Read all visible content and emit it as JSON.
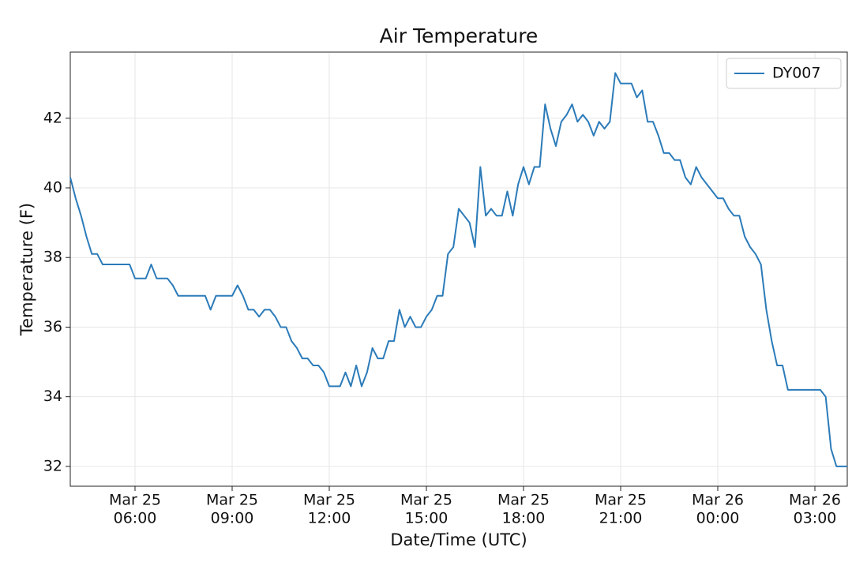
{
  "chart_data": {
    "type": "line",
    "title": "Air Temperature",
    "xlabel": "Date/Time (UTC)",
    "ylabel": "Temperature (F)",
    "x": [
      "Mar 25 04:00",
      "Mar 25 04:10",
      "Mar 25 04:20",
      "Mar 25 04:30",
      "Mar 25 04:40",
      "Mar 25 04:50",
      "Mar 25 05:00",
      "Mar 25 05:10",
      "Mar 25 05:20",
      "Mar 25 05:30",
      "Mar 25 05:40",
      "Mar 25 05:50",
      "Mar 25 06:00",
      "Mar 25 06:10",
      "Mar 25 06:20",
      "Mar 25 06:30",
      "Mar 25 06:40",
      "Mar 25 06:50",
      "Mar 25 07:00",
      "Mar 25 07:10",
      "Mar 25 07:20",
      "Mar 25 07:30",
      "Mar 25 07:40",
      "Mar 25 07:50",
      "Mar 25 08:00",
      "Mar 25 08:10",
      "Mar 25 08:20",
      "Mar 25 08:30",
      "Mar 25 08:40",
      "Mar 25 08:50",
      "Mar 25 09:00",
      "Mar 25 09:10",
      "Mar 25 09:20",
      "Mar 25 09:30",
      "Mar 25 09:40",
      "Mar 25 09:50",
      "Mar 25 10:00",
      "Mar 25 10:10",
      "Mar 25 10:20",
      "Mar 25 10:30",
      "Mar 25 10:40",
      "Mar 25 10:50",
      "Mar 25 11:00",
      "Mar 25 11:10",
      "Mar 25 11:20",
      "Mar 25 11:30",
      "Mar 25 11:40",
      "Mar 25 11:50",
      "Mar 25 12:00",
      "Mar 25 12:10",
      "Mar 25 12:20",
      "Mar 25 12:30",
      "Mar 25 12:40",
      "Mar 25 12:50",
      "Mar 25 13:00",
      "Mar 25 13:10",
      "Mar 25 13:20",
      "Mar 25 13:30",
      "Mar 25 13:40",
      "Mar 25 13:50",
      "Mar 25 14:00",
      "Mar 25 14:10",
      "Mar 25 14:20",
      "Mar 25 14:30",
      "Mar 25 14:40",
      "Mar 25 14:50",
      "Mar 25 15:00",
      "Mar 25 15:10",
      "Mar 25 15:20",
      "Mar 25 15:30",
      "Mar 25 15:40",
      "Mar 25 15:50",
      "Mar 25 16:00",
      "Mar 25 16:10",
      "Mar 25 16:20",
      "Mar 25 16:30",
      "Mar 25 16:40",
      "Mar 25 16:50",
      "Mar 25 17:00",
      "Mar 25 17:10",
      "Mar 25 17:20",
      "Mar 25 17:30",
      "Mar 25 17:40",
      "Mar 25 17:50",
      "Mar 25 18:00",
      "Mar 25 18:10",
      "Mar 25 18:20",
      "Mar 25 18:30",
      "Mar 25 18:40",
      "Mar 25 18:50",
      "Mar 25 19:00",
      "Mar 25 19:10",
      "Mar 25 19:20",
      "Mar 25 19:30",
      "Mar 25 19:40",
      "Mar 25 19:50",
      "Mar 25 20:00",
      "Mar 25 20:10",
      "Mar 25 20:20",
      "Mar 25 20:30",
      "Mar 25 20:40",
      "Mar 25 20:50",
      "Mar 25 21:00",
      "Mar 25 21:10",
      "Mar 25 21:20",
      "Mar 25 21:30",
      "Mar 25 21:40",
      "Mar 25 21:50",
      "Mar 25 22:00",
      "Mar 25 22:10",
      "Mar 25 22:20",
      "Mar 25 22:30",
      "Mar 25 22:40",
      "Mar 25 22:50",
      "Mar 25 23:00",
      "Mar 25 23:10",
      "Mar 25 23:20",
      "Mar 25 23:30",
      "Mar 25 23:40",
      "Mar 25 23:50",
      "Mar 26 00:00",
      "Mar 26 00:10",
      "Mar 26 00:20",
      "Mar 26 00:30",
      "Mar 26 00:40",
      "Mar 26 00:50",
      "Mar 26 01:00",
      "Mar 26 01:10",
      "Mar 26 01:20",
      "Mar 26 01:30",
      "Mar 26 01:40",
      "Mar 26 01:50",
      "Mar 26 02:00",
      "Mar 26 02:10",
      "Mar 26 02:20",
      "Mar 26 02:30",
      "Mar 26 02:40",
      "Mar 26 02:50",
      "Mar 26 03:00",
      "Mar 26 03:10",
      "Mar 26 03:20",
      "Mar 26 03:30",
      "Mar 26 03:40",
      "Mar 26 03:50",
      "Mar 26 04:00"
    ],
    "series": [
      {
        "name": "DY007",
        "color": "#2b7bb9",
        "values": [
          40.3,
          39.7,
          39.2,
          38.6,
          38.1,
          38.1,
          37.8,
          37.8,
          37.8,
          37.8,
          37.8,
          37.8,
          37.4,
          37.4,
          37.4,
          37.8,
          37.4,
          37.4,
          37.4,
          37.2,
          36.9,
          36.9,
          36.9,
          36.9,
          36.9,
          36.9,
          36.5,
          36.9,
          36.9,
          36.9,
          36.9,
          37.2,
          36.9,
          36.5,
          36.5,
          36.3,
          36.5,
          36.5,
          36.3,
          36.0,
          36.0,
          35.6,
          35.4,
          35.1,
          35.1,
          34.9,
          34.9,
          34.7,
          34.3,
          34.3,
          34.3,
          34.7,
          34.3,
          34.9,
          34.3,
          34.7,
          35.4,
          35.1,
          35.1,
          35.6,
          35.6,
          36.5,
          36.0,
          36.3,
          36.0,
          36.0,
          36.3,
          36.5,
          36.9,
          36.9,
          38.1,
          38.3,
          39.4,
          39.2,
          39.0,
          38.3,
          40.6,
          39.2,
          39.4,
          39.2,
          39.2,
          39.9,
          39.2,
          40.1,
          40.6,
          40.1,
          40.6,
          40.6,
          42.4,
          41.7,
          41.2,
          41.9,
          42.1,
          42.4,
          41.9,
          42.1,
          41.9,
          41.5,
          41.9,
          41.7,
          41.9,
          43.3,
          43.0,
          43.0,
          43.0,
          42.6,
          42.8,
          41.9,
          41.9,
          41.5,
          41.0,
          41.0,
          40.8,
          40.8,
          40.3,
          40.1,
          40.6,
          40.3,
          40.1,
          39.9,
          39.7,
          39.7,
          39.4,
          39.2,
          39.2,
          38.6,
          38.3,
          38.1,
          37.8,
          36.5,
          35.6,
          34.9,
          34.9,
          34.2,
          34.2,
          34.2,
          34.2,
          34.2,
          34.2,
          34.2,
          34.0,
          32.5,
          32.0,
          32.0,
          32.0
        ]
      }
    ],
    "xlim": [
      "Mar 25 04:00",
      "Mar 26 04:00"
    ],
    "xticks": [
      {
        "value": "Mar 25 06:00",
        "label": [
          "Mar 25",
          "06:00"
        ]
      },
      {
        "value": "Mar 25 09:00",
        "label": [
          "Mar 25",
          "09:00"
        ]
      },
      {
        "value": "Mar 25 12:00",
        "label": [
          "Mar 25",
          "12:00"
        ]
      },
      {
        "value": "Mar 25 15:00",
        "label": [
          "Mar 25",
          "15:00"
        ]
      },
      {
        "value": "Mar 25 18:00",
        "label": [
          "Mar 25",
          "18:00"
        ]
      },
      {
        "value": "Mar 25 21:00",
        "label": [
          "Mar 25",
          "21:00"
        ]
      },
      {
        "value": "Mar 26 00:00",
        "label": [
          "Mar 26",
          "00:00"
        ]
      },
      {
        "value": "Mar 26 03:00",
        "label": [
          "Mar 26",
          "03:00"
        ]
      }
    ],
    "ylim": [
      31.43,
      43.9
    ],
    "yticks": [
      32,
      34,
      36,
      38,
      40,
      42
    ],
    "grid": true,
    "legend": "upper right"
  }
}
